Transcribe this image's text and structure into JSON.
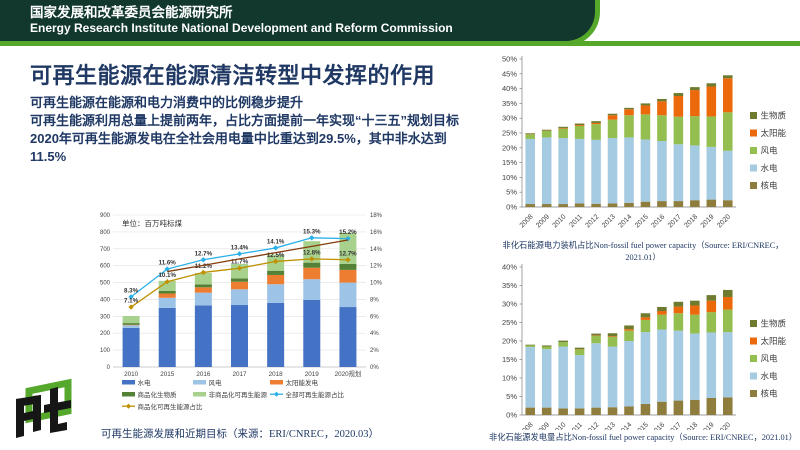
{
  "header": {
    "org_zh": "国家发展和改革委员会能源研究所",
    "org_en": "Energy Research Institute National Development and Reform Commission",
    "band_color": "#12382E",
    "stripe_color": "#56A82B"
  },
  "slide": {
    "title": "可再生能源在能源清洁转型中发挥的作用",
    "text_color": "#1F3864",
    "bullets": [
      "可再生能源在能源和电力消费中的比例稳步提升",
      "可再生能源利用总量上提前两年，占比方面提前一年实现“十三五”规划目标",
      "2020年可再生能源发电在全社会用电量中比重达到29.5%，其中非水达到11.5%"
    ]
  },
  "chart_data": [
    {
      "id": "renewable-development",
      "type": "bar",
      "subtype": "stacked-bars-with-share-lines",
      "unit_label": "单位：百万吨标煤",
      "caption": "可再生能源发展和近期目标（来源：ERI/CNREC，2020.03）",
      "categories": [
        "2010",
        "2015",
        "2016",
        "2017",
        "2018",
        "2019",
        "2020规划"
      ],
      "left_axis": {
        "min": 0,
        "max": 900,
        "step": 100
      },
      "right_axis": {
        "min": 0,
        "max": 18,
        "step": 2,
        "suffix": "%"
      },
      "grid": true,
      "legend_position": "bottom",
      "bar_series": [
        {
          "name": "水电",
          "color": "#4472C4",
          "values": [
            232,
            350,
            365,
            367,
            380,
            397,
            355
          ]
        },
        {
          "name": "风电",
          "color": "#9DC3E6",
          "values": [
            15,
            60,
            75,
            93,
            110,
            123,
            145
          ]
        },
        {
          "name": "太阳能发电",
          "color": "#ED7D31",
          "values": [
            3,
            25,
            32,
            45,
            55,
            68,
            75
          ]
        },
        {
          "name": "商品化生物质",
          "color": "#538135",
          "values": [
            10,
            15,
            17,
            20,
            25,
            30,
            35
          ]
        },
        {
          "name": "非商品化可再生能源",
          "color": "#A9D18E",
          "values": [
            42,
            60,
            68,
            85,
            95,
            127,
            185
          ]
        }
      ],
      "line_series": [
        {
          "name": "全部可再生能源占比",
          "color": "#29B0E8",
          "axis": "right",
          "show_labels": true,
          "labels": [
            "8.3%",
            "11.6%",
            "12.7%",
            "13.4%",
            "14.1%",
            "15.3%",
            "15.2%"
          ],
          "values": [
            8.3,
            11.6,
            12.7,
            13.4,
            14.1,
            15.3,
            15.2
          ]
        },
        {
          "name": "商品化可再生能源占比",
          "color": "#BF9000",
          "axis": "right",
          "show_labels": true,
          "labels": [
            "7.1%",
            "10.1%",
            "11.2%",
            "11.7%",
            "12.5%",
            "12.8%",
            "12.7%"
          ],
          "values": [
            7.1,
            10.1,
            11.2,
            11.7,
            12.5,
            12.8,
            12.7
          ]
        },
        {
          "name": "",
          "color": "#843C0C",
          "axis": "left",
          "show_labels": false,
          "in_legend": false,
          "marker": false,
          "values": [
            null,
            565,
            602,
            640,
            677,
            714,
            752
          ]
        }
      ]
    },
    {
      "id": "non-fossil-capacity",
      "type": "bar",
      "subtype": "stacked-bar",
      "caption": "非化石能源电力装机占比Non-fossil fuel power capacity（Source: ERI/CNREC，2021.01）",
      "categories": [
        "2008",
        "2009",
        "2010",
        "2011",
        "2012",
        "2013",
        "2014",
        "2015",
        "2016",
        "2017",
        "2018",
        "2019",
        "2020"
      ],
      "y_axis": {
        "min": 0,
        "max": 50,
        "step": 5,
        "suffix": "%"
      },
      "grid": false,
      "legend_position": "right",
      "series": [
        {
          "name": "核电",
          "color": "#8E7D3C",
          "values": [
            1.0,
            1.0,
            1.0,
            1.2,
            1.1,
            1.2,
            1.4,
            1.8,
            2.0,
            2.0,
            2.3,
            2.5,
            2.3
          ]
        },
        {
          "name": "水电",
          "color": "#A5CBE2",
          "values": [
            22.0,
            22.5,
            22.3,
            21.8,
            21.6,
            22.1,
            22.1,
            21.0,
            20.3,
            19.2,
            18.5,
            17.8,
            16.7
          ]
        },
        {
          "name": "风电",
          "color": "#94BE4F",
          "values": [
            1.5,
            2.2,
            3.2,
            4.4,
            5.3,
            6.2,
            7.5,
            8.5,
            8.7,
            9.3,
            9.9,
            10.3,
            13.0
          ]
        },
        {
          "name": "太阳能",
          "color": "#EB690B",
          "values": [
            0.1,
            0.1,
            0.2,
            0.3,
            0.4,
            1.5,
            2.0,
            3.0,
            4.7,
            7.0,
            8.8,
            10.1,
            11.5
          ]
        },
        {
          "name": "生物质",
          "color": "#6E7B2F",
          "values": [
            0.3,
            0.3,
            0.4,
            0.5,
            0.6,
            0.5,
            0.5,
            0.7,
            0.8,
            1.0,
            1.0,
            1.1,
            1.0
          ]
        }
      ]
    },
    {
      "id": "non-fossil-generation",
      "type": "bar",
      "subtype": "stacked-bar",
      "caption": "非化石能源发电量占比Non-fossil fuel power capacity（Source: ERI/CNREC，2021.01）",
      "categories": [
        "2008",
        "2009",
        "2010",
        "2011",
        "2012",
        "2013",
        "2014",
        "2015",
        "2016",
        "2017",
        "2018",
        "2019",
        "2020"
      ],
      "y_axis": {
        "min": 0,
        "max": 40,
        "step": 5,
        "suffix": "%"
      },
      "grid": false,
      "legend_position": "right",
      "series": [
        {
          "name": "核电",
          "color": "#8E7D3C",
          "values": [
            2.0,
            2.0,
            1.8,
            1.8,
            2.0,
            2.1,
            2.3,
            3.0,
            3.6,
            3.9,
            4.1,
            4.6,
            4.8
          ]
        },
        {
          "name": "水电",
          "color": "#A5CBE2",
          "values": [
            16.4,
            15.8,
            16.7,
            14.4,
            17.4,
            16.4,
            17.7,
            19.4,
            19.5,
            18.9,
            17.9,
            17.7,
            17.6
          ]
        },
        {
          "name": "风电",
          "color": "#94BE4F",
          "values": [
            0.4,
            0.7,
            1.2,
            1.5,
            2.0,
            2.6,
            2.8,
            3.3,
            4.0,
            4.7,
            5.1,
            5.5,
            6.1
          ]
        },
        {
          "name": "太阳能",
          "color": "#EB690B",
          "values": [
            0.0,
            0.0,
            0.0,
            0.1,
            0.1,
            0.2,
            0.4,
            0.7,
            1.0,
            1.8,
            2.5,
            3.1,
            3.4
          ]
        },
        {
          "name": "生物质",
          "color": "#6E7B2F",
          "values": [
            0.2,
            0.3,
            0.4,
            0.4,
            0.5,
            0.8,
            1.0,
            1.1,
            1.1,
            1.3,
            1.3,
            1.5,
            1.9
          ]
        }
      ]
    }
  ],
  "logo": {
    "label": "eri-logo",
    "green": "#55A82C",
    "black": "#161616"
  }
}
